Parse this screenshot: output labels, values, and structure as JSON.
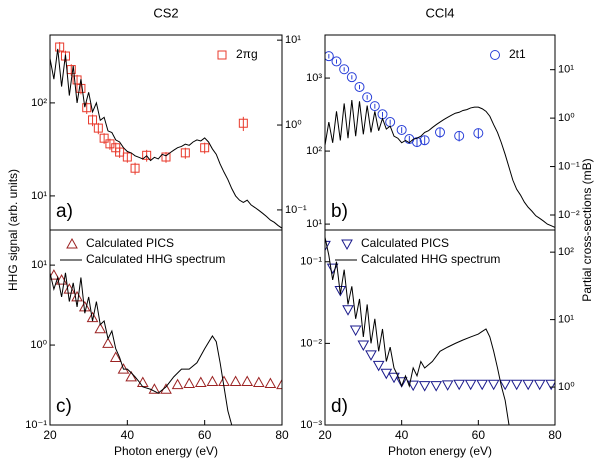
{
  "chart_data": [
    {
      "type": "line",
      "title": "CS2",
      "panel_label": "a)",
      "ylabel": "HHG signal (arb. units)",
      "xlim": [
        20,
        80
      ],
      "ylim": [
        4.3,
        537
      ],
      "log": true,
      "yticks": [
        {
          "value": 10,
          "label": "10¹"
        },
        {
          "value": 100,
          "label": "10²"
        }
      ],
      "y2lim": [
        0.058,
        11.5
      ],
      "y2ticks": [
        {
          "value": 0.1,
          "label": "10⁻¹"
        },
        {
          "value": 1,
          "label": "10⁰"
        },
        {
          "value": 10,
          "label": "10¹"
        }
      ],
      "legend": "upper right",
      "series": [
        {
          "name": "2πg",
          "color": "#e8392b",
          "marker": "square",
          "axis": "y2",
          "x": [
            22.5,
            24,
            25.5,
            27,
            28,
            29.5,
            31,
            32.5,
            34,
            35.5,
            37,
            38,
            40,
            42,
            45,
            50,
            55,
            60,
            70
          ],
          "values": [
            8.3,
            6.5,
            4.5,
            3.4,
            2.7,
            1.6,
            1.15,
            0.92,
            0.7,
            0.6,
            0.54,
            0.48,
            0.42,
            0.31,
            0.44,
            0.42,
            0.47,
            0.54,
            1.05
          ],
          "errors": [
            1.2,
            1,
            0.7,
            0.5,
            0.4,
            0.25,
            0.18,
            0.14,
            0.1,
            0.09,
            0.08,
            0.07,
            0.06,
            0.05,
            0.07,
            0.06,
            0.07,
            0.08,
            0.2
          ]
        },
        {
          "color": "#000000",
          "x": [
            20,
            21,
            22,
            23,
            24,
            25,
            26,
            27,
            28,
            29,
            30,
            31,
            32,
            33,
            34,
            35,
            36,
            37,
            38,
            39,
            40,
            41,
            42,
            43,
            44,
            45,
            46,
            47,
            48,
            49,
            50,
            51,
            52,
            53,
            54,
            55,
            56,
            57,
            58,
            59,
            60,
            61,
            62,
            63,
            64,
            65,
            66,
            67,
            68,
            69,
            70,
            71,
            72,
            73,
            74,
            75,
            76,
            77,
            78,
            79,
            80
          ],
          "values": [
            300,
            180,
            380,
            150,
            330,
            120,
            250,
            100,
            180,
            90,
            130,
            80,
            100,
            65,
            70,
            50,
            48,
            40,
            38,
            33,
            30,
            29,
            27,
            26,
            25,
            27,
            24,
            26,
            25,
            28,
            27,
            29,
            31,
            33,
            34,
            36,
            35,
            38,
            40,
            39,
            42,
            38,
            32,
            28,
            22,
            18,
            15,
            12,
            10,
            9,
            8.5,
            9,
            8,
            7.5,
            7,
            6.5,
            6,
            5.5,
            5.2,
            4.8,
            4.5
          ]
        }
      ]
    },
    {
      "type": "line",
      "title": "CCl4",
      "panel_label": "b)",
      "y2label": "Partial cross-sections (mB)",
      "xlim": [
        20,
        80
      ],
      "ylim": [
        8.3,
        3890
      ],
      "log": true,
      "yticks": [
        {
          "value": 10,
          "label": "10¹"
        },
        {
          "value": 100,
          "label": "10²"
        },
        {
          "value": 1000,
          "label": "10³"
        }
      ],
      "y2lim": [
        0.0049,
        52
      ],
      "y2ticks": [
        {
          "value": 0.01,
          "label": "10⁻²"
        },
        {
          "value": 0.1,
          "label": "10⁻¹"
        },
        {
          "value": 1,
          "label": "10⁰"
        },
        {
          "value": 10,
          "label": "10¹"
        }
      ],
      "legend": "upper right",
      "series": [
        {
          "name": "2t1",
          "color": "#2a40d8",
          "marker": "circle",
          "axis": "y2",
          "x": [
            21,
            23,
            25,
            27,
            29,
            31,
            33,
            35,
            37,
            40,
            42,
            44,
            46,
            50,
            55,
            60
          ],
          "values": [
            19,
            14.8,
            10.2,
            7,
            4.4,
            2.7,
            1.77,
            1.2,
            0.83,
            0.57,
            0.37,
            0.32,
            0.35,
            0.51,
            0.43,
            0.49
          ],
          "errors": [
            2,
            1.5,
            1,
            0.7,
            0.45,
            0.3,
            0.2,
            0.14,
            0.1,
            0.08,
            0.06,
            0.06,
            0.07,
            0.12,
            0.1,
            0.12
          ]
        },
        {
          "color": "#000000",
          "x": [
            20,
            21,
            22,
            23,
            24,
            25,
            26,
            27,
            28,
            29,
            30,
            31,
            32,
            33,
            34,
            35,
            36,
            37,
            38,
            39,
            40,
            41,
            42,
            43,
            44,
            45,
            46,
            47,
            48,
            49,
            50,
            51,
            52,
            53,
            54,
            55,
            56,
            57,
            58,
            59,
            60,
            61,
            62,
            63,
            64,
            65,
            66,
            67,
            68,
            69,
            70,
            71,
            72,
            73,
            74,
            75,
            76,
            77,
            78,
            79,
            80
          ],
          "values": [
            120,
            250,
            130,
            350,
            140,
            450,
            150,
            500,
            160,
            480,
            170,
            420,
            180,
            350,
            190,
            280,
            200,
            220,
            160,
            150,
            130,
            140,
            130,
            145,
            150,
            160,
            180,
            190,
            210,
            230,
            250,
            270,
            290,
            310,
            330,
            340,
            360,
            370,
            390,
            400,
            400,
            380,
            350,
            300,
            230,
            180,
            130,
            90,
            60,
            40,
            30,
            25,
            20,
            17,
            15,
            13,
            12,
            11,
            10,
            9.5,
            9
          ]
        }
      ]
    },
    {
      "type": "line",
      "panel_label": "c)",
      "xlabel": "Photon energy (eV)",
      "xlim": [
        20,
        80
      ],
      "xticks": [
        20,
        40,
        60,
        80
      ],
      "ylim": [
        0.1,
        27.5
      ],
      "log": true,
      "yticks": [
        {
          "value": 0.1,
          "label": "10⁻¹"
        },
        {
          "value": 1,
          "label": "10⁰"
        },
        {
          "value": 10,
          "label": "10¹"
        }
      ],
      "legend": "upper left",
      "series": [
        {
          "name": "Calculated PICS",
          "color": "#9b2222",
          "marker": "triangle-up",
          "x": [
            21,
            23,
            25,
            27,
            29,
            31,
            33,
            35,
            37,
            39,
            41,
            44,
            47,
            50,
            53,
            56,
            59,
            62,
            65,
            68,
            71,
            74,
            77,
            80
          ],
          "values": [
            7.5,
            6.5,
            5,
            4,
            3,
            2.2,
            1.6,
            1.05,
            0.7,
            0.5,
            0.4,
            0.34,
            0.28,
            0.28,
            0.32,
            0.33,
            0.34,
            0.35,
            0.35,
            0.35,
            0.35,
            0.34,
            0.33,
            0.32
          ]
        },
        {
          "name": "Calculated HHG spectrum",
          "color": "#000000",
          "x": [
            20,
            21,
            22,
            23,
            24,
            25,
            26,
            27,
            28,
            29,
            30,
            31,
            32,
            33,
            34,
            35,
            36,
            37,
            38,
            39,
            40,
            41,
            42,
            43,
            44,
            46,
            48,
            50,
            52,
            54,
            56,
            58,
            60,
            62,
            63,
            64,
            65,
            66,
            67
          ],
          "values": [
            8,
            5,
            7,
            4,
            8,
            3.5,
            6,
            3,
            7,
            2.5,
            4,
            2,
            3.5,
            1.8,
            2,
            1.2,
            1.5,
            0.9,
            0.7,
            0.5,
            0.5,
            0.45,
            0.4,
            0.35,
            0.3,
            0.28,
            0.25,
            0.3,
            0.4,
            0.5,
            0.5,
            0.6,
            0.9,
            1.3,
            1.1,
            0.6,
            0.3,
            0.15,
            0.1
          ]
        }
      ]
    },
    {
      "type": "line",
      "panel_label": "d)",
      "xlabel": "Photon energy (eV)",
      "xlim": [
        20,
        80
      ],
      "xticks": [
        20,
        40,
        60,
        80
      ],
      "ylim": [
        0.001,
        0.245
      ],
      "log": true,
      "yticks": [
        {
          "value": 0.001,
          "label": "10⁻³"
        },
        {
          "value": 0.01,
          "label": "10⁻²"
        },
        {
          "value": 0.1,
          "label": "10⁻¹"
        }
      ],
      "y2lim": [
        0.274,
        213
      ],
      "y2ticks": [
        {
          "value": 1,
          "label": "10⁰"
        },
        {
          "value": 10,
          "label": "10¹"
        },
        {
          "value": 100,
          "label": "10²"
        }
      ],
      "legend": "upper left",
      "series": [
        {
          "name": "Calculated PICS",
          "color": "#1a1a8c",
          "marker": "triangle-down",
          "axis": "y2",
          "x": [
            20,
            22,
            24,
            26,
            28,
            30,
            32,
            34,
            36,
            38,
            40,
            43,
            46,
            49,
            52,
            55,
            58,
            61,
            64,
            67,
            70,
            73,
            76,
            79
          ],
          "values": [
            126,
            58,
            27,
            14,
            7,
            4.2,
            3,
            2.1,
            1.6,
            1.4,
            1.2,
            1.07,
            1.05,
            1.05,
            1.08,
            1.1,
            1.1,
            1.1,
            1.1,
            1.1,
            1.1,
            1.1,
            1.1,
            1.1
          ]
        },
        {
          "name": "Calculated HHG spectrum",
          "color": "#000000",
          "x": [
            20,
            21,
            22,
            23,
            24,
            25,
            26,
            27,
            28,
            29,
            30,
            31,
            32,
            33,
            34,
            35,
            36,
            37,
            38,
            39,
            40,
            41,
            42,
            43,
            44,
            45,
            46,
            48,
            50,
            52,
            54,
            56,
            58,
            60,
            61,
            62,
            63,
            64,
            65,
            66,
            67,
            68
          ],
          "values": [
            0.2,
            0.12,
            0.06,
            0.1,
            0.04,
            0.08,
            0.03,
            0.05,
            0.02,
            0.035,
            0.012,
            0.03,
            0.01,
            0.02,
            0.008,
            0.015,
            0.006,
            0.009,
            0.005,
            0.004,
            0.003,
            0.004,
            0.003,
            0.005,
            0.004,
            0.006,
            0.005,
            0.006,
            0.008,
            0.009,
            0.01,
            0.011,
            0.012,
            0.013,
            0.014,
            0.015,
            0.012,
            0.008,
            0.005,
            0.003,
            0.002,
            0.001
          ]
        }
      ]
    }
  ]
}
